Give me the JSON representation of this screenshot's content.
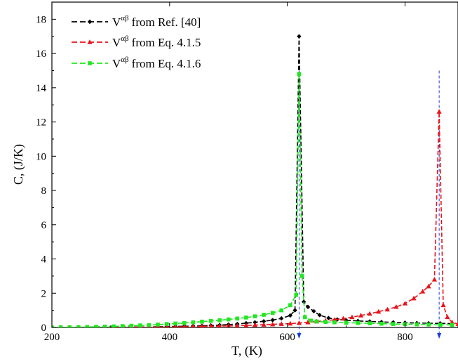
{
  "chart_data": {
    "type": "line",
    "xlabel": "T, (K)",
    "ylabel": "C, (J/K)",
    "xlim": [
      200,
      890
    ],
    "ylim": [
      0,
      19
    ],
    "xticks": [
      200,
      400,
      600,
      800
    ],
    "yticks": [
      0,
      2,
      4,
      6,
      8,
      10,
      12,
      14,
      16,
      18
    ],
    "grid": false,
    "legend_position": "top-left",
    "legend": {
      "base": "V",
      "superscript": "αβ",
      "entries": [
        "from Ref. [40]",
        "from Eq. 4.1.5",
        "from Eq. 4.1.6"
      ]
    },
    "series": [
      {
        "legend_index": 0,
        "color": "#000000",
        "marker": "diamond",
        "x": [
          200,
          215,
          230,
          245,
          260,
          275,
          290,
          305,
          320,
          335,
          350,
          365,
          380,
          395,
          410,
          425,
          440,
          455,
          470,
          485,
          500,
          515,
          530,
          545,
          560,
          575,
          590,
          605,
          613,
          620,
          628,
          635,
          645,
          655,
          670,
          685,
          700,
          720,
          740,
          760,
          780,
          800,
          820,
          840,
          860,
          880
        ],
        "y": [
          0,
          0,
          0,
          0,
          0,
          0.01,
          0.01,
          0.01,
          0.02,
          0.02,
          0.03,
          0.03,
          0.04,
          0.05,
          0.06,
          0.07,
          0.08,
          0.1,
          0.12,
          0.14,
          0.17,
          0.2,
          0.25,
          0.3,
          0.36,
          0.43,
          0.53,
          0.7,
          1.0,
          17.0,
          1.5,
          1.2,
          0.95,
          0.72,
          0.55,
          0.47,
          0.42,
          0.38,
          0.35,
          0.32,
          0.3,
          0.28,
          0.26,
          0.25,
          0.24,
          0.23
        ]
      },
      {
        "legend_index": 1,
        "color": "#e8141b",
        "marker": "triangle",
        "x": [
          200,
          215,
          230,
          245,
          260,
          275,
          290,
          305,
          320,
          335,
          350,
          365,
          380,
          395,
          410,
          425,
          440,
          455,
          470,
          485,
          500,
          515,
          530,
          545,
          560,
          575,
          590,
          605,
          620,
          635,
          650,
          665,
          680,
          695,
          710,
          725,
          740,
          755,
          770,
          785,
          800,
          815,
          830,
          840,
          850,
          858,
          865,
          872,
          880,
          890
        ],
        "y": [
          0,
          0,
          0,
          0,
          0,
          0,
          0,
          0.01,
          0.01,
          0.01,
          0.02,
          0.02,
          0.02,
          0.03,
          0.03,
          0.04,
          0.05,
          0.06,
          0.07,
          0.08,
          0.09,
          0.1,
          0.12,
          0.14,
          0.16,
          0.18,
          0.2,
          0.23,
          0.26,
          0.3,
          0.35,
          0.4,
          0.45,
          0.52,
          0.6,
          0.7,
          0.8,
          0.92,
          1.05,
          1.2,
          1.4,
          1.7,
          2.1,
          2.4,
          2.8,
          12.6,
          1.3,
          0.6,
          0.3,
          0.2
        ]
      },
      {
        "legend_index": 2,
        "color": "#22e622",
        "marker": "square",
        "x": [
          200,
          215,
          230,
          245,
          260,
          275,
          290,
          305,
          320,
          335,
          350,
          365,
          380,
          395,
          410,
          425,
          440,
          455,
          470,
          485,
          500,
          515,
          530,
          545,
          560,
          575,
          590,
          605,
          615,
          620,
          625,
          630,
          640,
          650,
          665,
          680,
          700,
          720,
          740,
          760,
          780,
          800,
          820,
          840,
          860,
          880
        ],
        "y": [
          0,
          0.01,
          0.01,
          0.02,
          0.03,
          0.04,
          0.05,
          0.06,
          0.08,
          0.1,
          0.12,
          0.14,
          0.17,
          0.2,
          0.23,
          0.26,
          0.3,
          0.34,
          0.38,
          0.42,
          0.47,
          0.52,
          0.58,
          0.65,
          0.74,
          0.85,
          1.0,
          1.3,
          1.9,
          14.8,
          3.0,
          0.6,
          0.4,
          0.35,
          0.32,
          0.3,
          0.28,
          0.26,
          0.24,
          0.22,
          0.2,
          0.19,
          0.18,
          0.17,
          0.16,
          0.15
        ]
      }
    ],
    "markers": [
      {
        "x": 620,
        "color": "#1a3cdc"
      },
      {
        "x": 858,
        "color": "#1a3cdc"
      }
    ]
  }
}
